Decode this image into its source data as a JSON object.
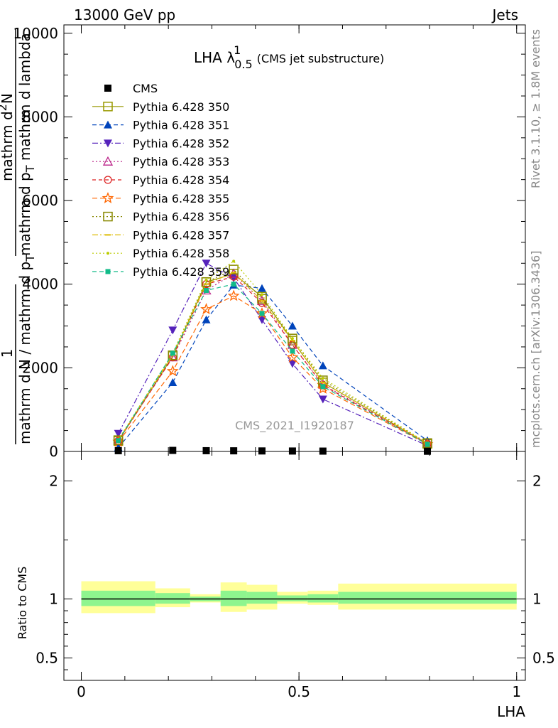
{
  "header": {
    "left": "13000 GeV pp",
    "right": "Jets"
  },
  "side_labels": {
    "rivet": "Rivet 3.1.10, ≥ 1.8M events",
    "mcplots": "mcplots.cern.ch [arXiv:1306.3436]"
  },
  "watermark": "CMS_2021_I1920187",
  "chart_data": {
    "type": "line",
    "title_main": "LHA λ",
    "title_sup": "1",
    "title_sub": "0.5",
    "title_note": "(CMS jet substructure)",
    "xlabel": "LHA",
    "ylabel_top_num": "1",
    "ylabel_top_den": "mathrm d N / mathrm d p",
    "ylabel_top_den_sub": "T",
    "ylabel_top_frac_num": "mathrm d",
    "ylabel_top_frac_num_sup": "2",
    "ylabel_top_frac_num_tail": "N",
    "ylabel_top_frac_den": "mathrm d p",
    "ylabel_top_frac_den_sub": "T",
    "ylabel_top_frac_den_tail": " mathrm d lambda",
    "ylabel_bottom": "Ratio to CMS",
    "xlim": [
      -0.04,
      1.02
    ],
    "ylim_top": [
      0,
      10200
    ],
    "ylim_bottom": [
      0.31,
      2.25
    ],
    "x_ticks": [
      0,
      0.5,
      1
    ],
    "x_tick_labels": [
      "0",
      "0.5",
      "1"
    ],
    "y_ticks_top": [
      0,
      2000,
      4000,
      6000,
      8000,
      10000
    ],
    "y_tick_labels_top": [
      "0",
      "2000",
      "4000",
      "6000",
      "8000",
      "10000"
    ],
    "y_ticks_bottom": [
      0.5,
      1,
      2
    ],
    "y_tick_labels_bottom": [
      "0.5",
      "1",
      "2"
    ],
    "x": [
      0.085,
      0.21,
      0.287,
      0.35,
      0.415,
      0.485,
      0.555,
      0.795
    ],
    "cms": [
      18,
      25,
      18,
      15,
      12,
      10,
      8,
      5
    ],
    "ratio_bands": [
      {
        "x0": 0.0,
        "x1": 0.17,
        "g0": 0.94,
        "g1": 1.07,
        "y0": 0.88,
        "y1": 1.15
      },
      {
        "x0": 0.17,
        "x1": 0.25,
        "g0": 0.96,
        "g1": 1.05,
        "y0": 0.93,
        "y1": 1.09
      },
      {
        "x0": 0.25,
        "x1": 0.32,
        "g0": 0.98,
        "g1": 1.02,
        "y0": 0.97,
        "y1": 1.04
      },
      {
        "x0": 0.32,
        "x1": 0.38,
        "g0": 0.94,
        "g1": 1.07,
        "y0": 0.89,
        "y1": 1.14
      },
      {
        "x0": 0.38,
        "x1": 0.45,
        "g0": 0.96,
        "g1": 1.06,
        "y0": 0.91,
        "y1": 1.12
      },
      {
        "x0": 0.45,
        "x1": 0.52,
        "g0": 0.98,
        "g1": 1.03,
        "y0": 0.96,
        "y1": 1.06
      },
      {
        "x0": 0.52,
        "x1": 0.59,
        "g0": 0.97,
        "g1": 1.04,
        "y0": 0.95,
        "y1": 1.07
      },
      {
        "x0": 0.59,
        "x1": 1.0,
        "g0": 0.96,
        "g1": 1.06,
        "y0": 0.91,
        "y1": 1.13
      }
    ],
    "band_colors": {
      "inner": "#8ef58e",
      "outer": "#ffff99"
    },
    "cms_legend": "CMS",
    "series": [
      {
        "name": "Pythia 6.428 350",
        "color": "#999900",
        "dash": "",
        "marker": "square-open",
        "values": [
          250,
          2280,
          4050,
          4250,
          3700,
          2650,
          1650,
          180
        ]
      },
      {
        "name": "Pythia 6.428 351",
        "color": "#0044bb",
        "dash": "6,4",
        "marker": "triangle-up",
        "values": [
          90,
          1650,
          3150,
          3980,
          3900,
          3000,
          2050,
          260
        ]
      },
      {
        "name": "Pythia 6.428 352",
        "color": "#5522bb",
        "dash": "8,3,2,3",
        "marker": "triangle-down",
        "values": [
          430,
          2900,
          4500,
          4150,
          3150,
          2100,
          1250,
          140
        ]
      },
      {
        "name": "Pythia 6.428 353",
        "color": "#bb2288",
        "dash": "2,3",
        "marker": "triangle-open",
        "values": [
          260,
          2250,
          3850,
          4250,
          3600,
          2550,
          1600,
          180
        ]
      },
      {
        "name": "Pythia 6.428 354",
        "color": "#dd2222",
        "dash": "5,4",
        "marker": "circle-open",
        "values": [
          250,
          2250,
          4000,
          4180,
          3550,
          2550,
          1580,
          180
        ]
      },
      {
        "name": "Pythia 6.428 355",
        "color": "#ff6600",
        "dash": "7,4",
        "marker": "star-open",
        "values": [
          230,
          1920,
          3400,
          3720,
          3300,
          2250,
          1500,
          170
        ]
      },
      {
        "name": "Pythia 6.428 356",
        "color": "#888800",
        "dash": "2,3",
        "marker": "square-open",
        "values": [
          270,
          2300,
          4050,
          4350,
          3650,
          2700,
          1700,
          200
        ]
      },
      {
        "name": "Pythia 6.428 357",
        "color": "#ddbb00",
        "dash": "8,3,2,3",
        "marker": "tick",
        "values": [
          270,
          2300,
          4000,
          4280,
          3600,
          2650,
          1650,
          190
        ]
      },
      {
        "name": "Pythia 6.428 358",
        "color": "#bbcc00",
        "dash": "2,3",
        "marker": "dot",
        "values": [
          280,
          2350,
          4100,
          4550,
          3750,
          2700,
          1750,
          200
        ]
      },
      {
        "name": "Pythia 6.428 359",
        "color": "#11bb88",
        "dash": "6,4",
        "marker": "square-filled",
        "values": [
          260,
          2350,
          3850,
          4000,
          3300,
          2400,
          1550,
          170
        ]
      }
    ]
  }
}
